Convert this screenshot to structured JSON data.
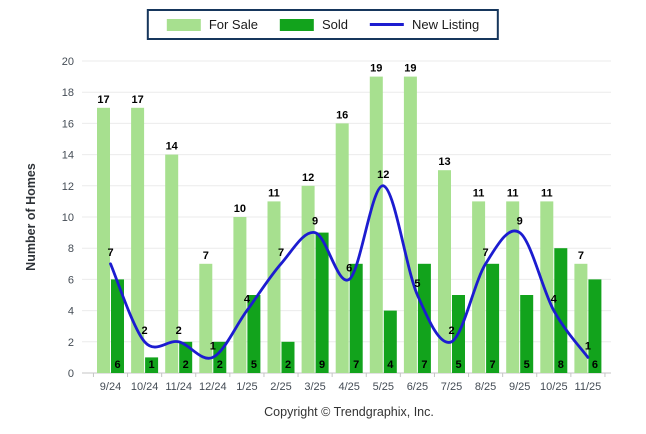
{
  "legend": {
    "for_sale_label": "For Sale",
    "sold_label": "Sold",
    "new_listing_label": "New Listing"
  },
  "footer": {
    "copyright": "Copyright © Trendgraphix, Inc."
  },
  "chart_data": {
    "type": "bar",
    "title": "",
    "categories": [
      "9/24",
      "10/24",
      "11/24",
      "12/24",
      "1/25",
      "2/25",
      "3/25",
      "4/25",
      "5/25",
      "6/25",
      "7/25",
      "8/25",
      "9/25",
      "10/25",
      "11/25"
    ],
    "series": [
      {
        "name": "For Sale",
        "type": "bar",
        "color": "#a7e08f",
        "values": [
          17,
          17,
          14,
          7,
          10,
          11,
          12,
          16,
          19,
          19,
          13,
          11,
          11,
          11,
          7
        ]
      },
      {
        "name": "Sold",
        "type": "bar",
        "color": "#12a31c",
        "values": [
          6,
          1,
          2,
          2,
          5,
          2,
          9,
          7,
          4,
          7,
          5,
          7,
          5,
          8,
          6
        ]
      },
      {
        "name": "New Listing",
        "type": "line",
        "color": "#1c1cd0",
        "values": [
          7,
          2,
          2,
          1,
          4,
          7,
          9,
          6,
          12,
          5,
          2,
          7,
          9,
          4,
          1
        ]
      }
    ],
    "xlabel": "",
    "ylabel": "Number of Homes",
    "ylim": [
      0,
      20
    ],
    "yticks": [
      0,
      2,
      4,
      6,
      8,
      10,
      12,
      14,
      16,
      18,
      20
    ],
    "grid": true,
    "legend_position": "top-center",
    "colors": {
      "grid_line": "#ebebeb",
      "axis_line": "#c6c6c6",
      "tick_label": "#444c55",
      "value_label": "#000000",
      "legend_border": "#16365c",
      "background": "#ffffff"
    }
  }
}
